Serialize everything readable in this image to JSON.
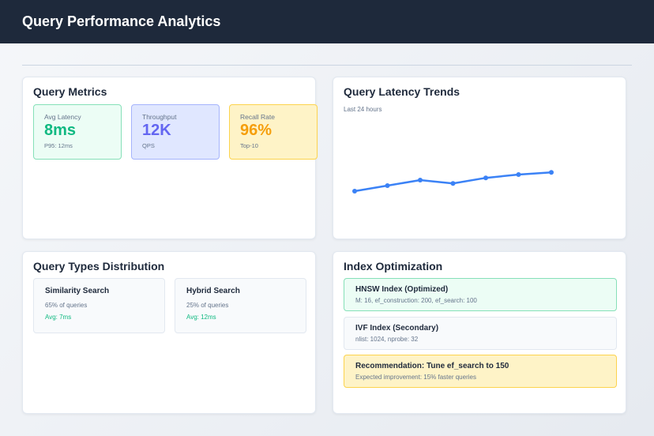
{
  "header": {
    "title": "Query Performance Analytics"
  },
  "metrics": {
    "title": "Query Metrics",
    "items": [
      {
        "label": "Avg Latency",
        "value": "8ms",
        "sub": "P95: 12ms",
        "color": "#10b981",
        "bg": "#ecfdf5",
        "border": "#86efac"
      },
      {
        "label": "Throughput",
        "value": "12K",
        "sub": "QPS",
        "color": "#6366f1",
        "bg": "#e0e7ff",
        "border": "#a5b4fc"
      },
      {
        "label": "Recall Rate",
        "value": "96%",
        "sub": "Top-10",
        "color": "#f59e0b",
        "bg": "#fef3c7",
        "border": "#fcd34d"
      }
    ]
  },
  "trends": {
    "title": "Query Latency Trends",
    "subtitle": "Last 24 hours"
  },
  "chart_data": {
    "type": "line",
    "series": [
      {
        "values": [
          35,
          40,
          45,
          42,
          47,
          50,
          52
        ]
      }
    ],
    "ylim": [
      0,
      100
    ],
    "grid": false,
    "color": "#3b82f6"
  },
  "types": {
    "title": "Query Types Distribution",
    "items": [
      {
        "name": "Similarity Search",
        "share": "65% of queries",
        "avg": "Avg: 7ms"
      },
      {
        "name": "Hybrid Search",
        "share": "25% of queries",
        "avg": "Avg: 12ms"
      }
    ]
  },
  "index": {
    "title": "Index Optimization",
    "items": [
      {
        "name": "HNSW Index (Optimized)",
        "detail": "M: 16, ef_construction: 200, ef_search: 100"
      },
      {
        "name": "IVF Index (Secondary)",
        "detail": "nlist: 1024, nprobe: 32"
      },
      {
        "name": "Recommendation: Tune ef_search to 150",
        "detail": "Expected improvement: 15% faster queries"
      }
    ]
  }
}
